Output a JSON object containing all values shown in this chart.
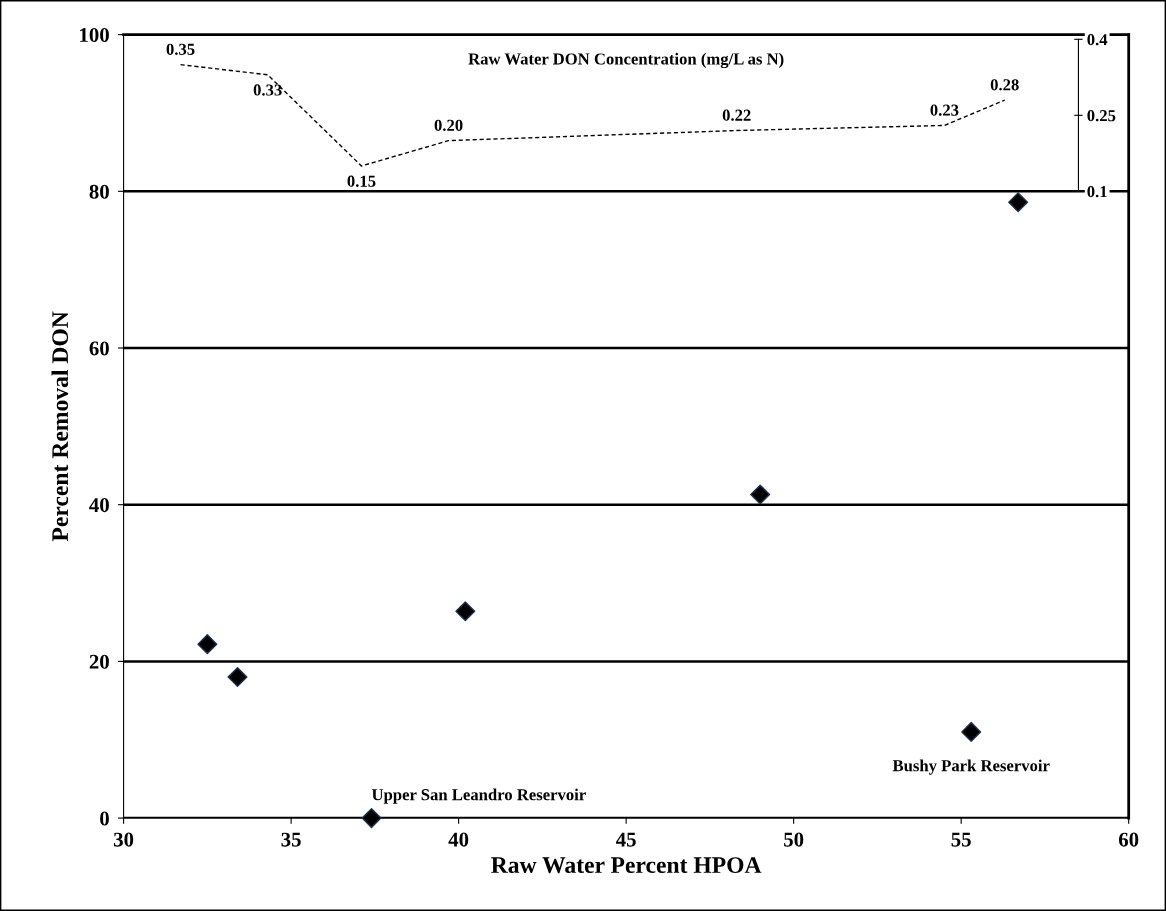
{
  "chart_data": [
    {
      "type": "scatter",
      "xlabel": "Raw Water Percent HPOA",
      "ylabel": "Percent Removal DON",
      "xlim": [
        30,
        60
      ],
      "xticks": [
        30,
        35,
        40,
        45,
        50,
        55,
        60
      ],
      "ylim": [
        0,
        100
      ],
      "yticks": [
        0,
        20,
        40,
        60,
        80,
        100
      ],
      "grid": "y",
      "marker": "diamond",
      "series": [
        {
          "color": "#000000",
          "x": [
            32.5,
            33.4,
            37.4,
            40.2,
            49.0,
            55.3,
            56.7
          ],
          "values": [
            22.2,
            18.0,
            0,
            26.4,
            41.3,
            11.0,
            78.6
          ]
        }
      ],
      "annotations": [
        {
          "text": "Upper San Leandro Reservoir",
          "x": 37.4,
          "y": 0
        },
        {
          "text": "Bushy Park Reservoir",
          "x": 55.3,
          "y": 11.0
        }
      ]
    },
    {
      "type": "line",
      "title": "Raw Water DON Concentration (mg/L as N)",
      "xlim": [
        30,
        60
      ],
      "ylim": [
        0.1,
        0.4
      ],
      "yticks": [
        0.1,
        0.25,
        0.4
      ],
      "tick_labels": "y",
      "line_style": "dashed",
      "marker": "none",
      "series": [
        {
          "color": "#000000",
          "x": [
            31.7,
            34.3,
            37.1,
            39.7,
            48.3,
            54.5,
            56.3
          ],
          "values": [
            0.35,
            0.33,
            0.15,
            0.2,
            0.22,
            0.23,
            0.28
          ],
          "value_labels": [
            "0.35",
            "0.33",
            "0.15",
            "0.20",
            "0.22",
            "0.23",
            "0.28"
          ]
        }
      ]
    }
  ]
}
